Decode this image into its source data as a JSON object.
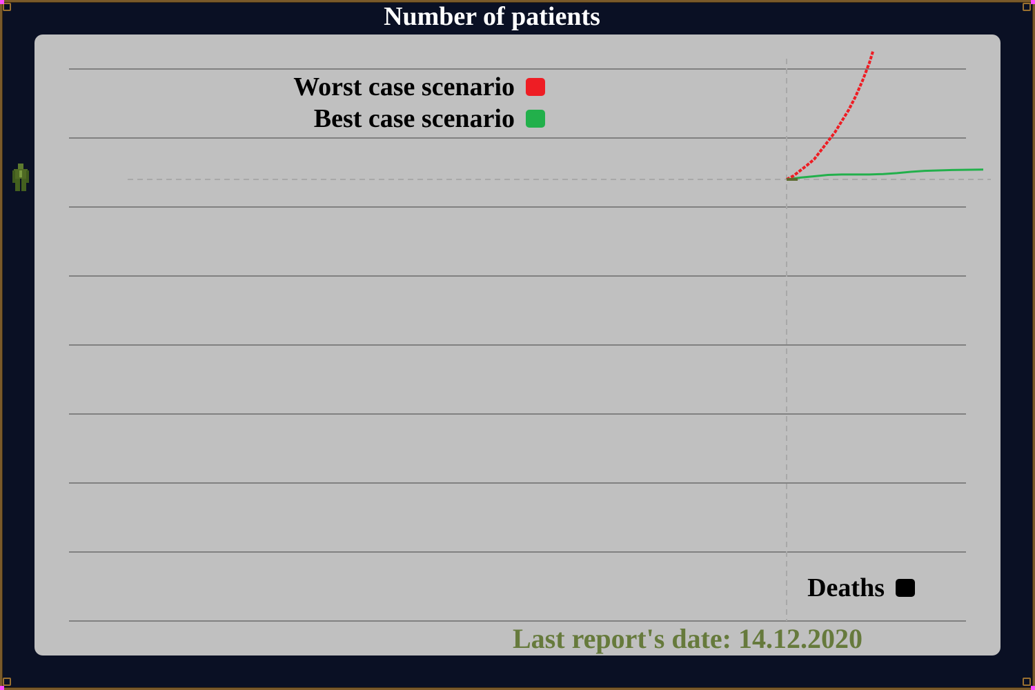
{
  "window": {
    "title": "Number of patients",
    "footer": "Last report's date: 14.12.2020"
  },
  "icons": {
    "side": "patient-figure-icon"
  },
  "colors": {
    "background": "#0a1024",
    "panel": "#c0c0c0",
    "frame": "#7a5a2a",
    "worst": "#ee1d24",
    "best": "#22b04b",
    "deaths": "#000000",
    "footer": "#667a3c"
  },
  "chart_data": {
    "type": "line",
    "grid": true,
    "legend": {
      "placement": "top-center",
      "entries": [
        {
          "label": "Worst case scenario",
          "color": "#ee1d24"
        },
        {
          "label": "Best case scenario",
          "color": "#22b04b"
        }
      ]
    },
    "secondary_legend": {
      "placement": "bottom-right",
      "entries": [
        {
          "label": "Deaths",
          "color": "#000000"
        }
      ]
    },
    "gridlines": 9,
    "series": [
      {
        "key": "worst",
        "x": [
          0,
          2,
          4,
          6,
          8,
          10,
          12,
          14,
          16,
          18,
          20,
          22,
          24,
          25
        ],
        "y": [
          0,
          0.08,
          0.2,
          0.32,
          0.45,
          0.65,
          0.85,
          1.05,
          1.3,
          1.55,
          1.85,
          2.2,
          2.6,
          2.85
        ]
      },
      {
        "key": "best",
        "x": [
          0,
          4,
          8,
          12,
          16,
          20,
          24,
          28,
          32,
          36,
          40,
          44,
          48,
          57
        ],
        "y": [
          0,
          0.04,
          0.07,
          0.1,
          0.11,
          0.11,
          0.11,
          0.12,
          0.14,
          0.17,
          0.19,
          0.2,
          0.21,
          0.22
        ]
      }
    ]
  }
}
